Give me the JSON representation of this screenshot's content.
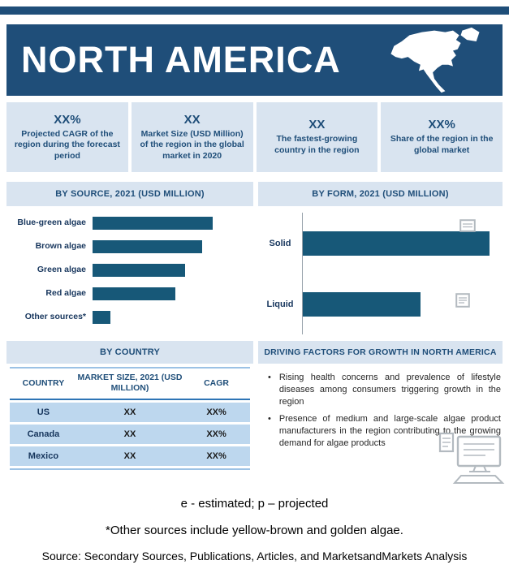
{
  "colors": {
    "navy": "#1f4e79",
    "bar_fill": "#175878",
    "panel_bg": "#d9e4f0",
    "table_row_bg": "#bdd7ee",
    "watermark_gray": "#b3bac0"
  },
  "header": {
    "title": "NORTH AMERICA"
  },
  "icons": {
    "map": "north-america-map-icon",
    "documents": "document-icon",
    "monitor": "monitor-keyboard-icon"
  },
  "stats": [
    {
      "value": "XX%",
      "label": "Projected CAGR of the region during the forecast period"
    },
    {
      "value": "XX",
      "label": "Market Size (USD Million) of the region in the global market in 2020"
    },
    {
      "value": "XX",
      "label": "The fastest-growing country in the region"
    },
    {
      "value": "XX%",
      "label": "Share of the region in the global market"
    }
  ],
  "sections": {
    "by_source": "BY SOURCE, 2021 (USD MILLION)",
    "by_form": "BY FORM, 2021 (USD MILLION)",
    "by_country": "BY COUNTRY",
    "driving_factors": "DRIVING FACTORS FOR GROWTH IN NORTH AMERICA"
  },
  "chart_data": [
    {
      "type": "bar",
      "orientation": "horizontal",
      "title": "BY SOURCE, 2021 (USD MILLION)",
      "categories": [
        "Blue-green algae",
        "Brown algae",
        "Green algae",
        "Red algae",
        "Other sources*"
      ],
      "values": [
        100,
        91,
        77,
        69,
        15
      ],
      "units": "USD Million (numeric values masked as XX in source)",
      "xlabel": "",
      "ylabel": "",
      "legend": false,
      "grid": false
    },
    {
      "type": "bar",
      "orientation": "horizontal",
      "title": "BY FORM, 2021 (USD MILLION)",
      "categories": [
        "Solid",
        "Liquid"
      ],
      "values": [
        100,
        63
      ],
      "units": "USD Million (numeric values masked as XX in source)",
      "xlabel": "",
      "ylabel": "",
      "legend": false,
      "grid": false
    }
  ],
  "country_table": {
    "headers": [
      "COUNTRY",
      "MARKET SIZE, 2021 (USD MILLION)",
      "CAGR"
    ],
    "rows": [
      [
        "US",
        "XX",
        "XX%"
      ],
      [
        "Canada",
        "XX",
        "XX%"
      ],
      [
        "Mexico",
        "XX",
        "XX%"
      ]
    ]
  },
  "driving_factors": [
    "Rising health concerns and prevalence of lifestyle diseases among consumers triggering growth in the region",
    "Presence of medium and large-scale algae product manufacturers in the region contributing to the growing demand for algae products"
  ],
  "footnotes": {
    "estimated": "e - estimated; p – projected",
    "other_sources": "*Other sources include yellow-brown and golden algae.",
    "source": "Source: Secondary Sources, Publications, Articles, and MarketsandMarkets Analysis"
  }
}
